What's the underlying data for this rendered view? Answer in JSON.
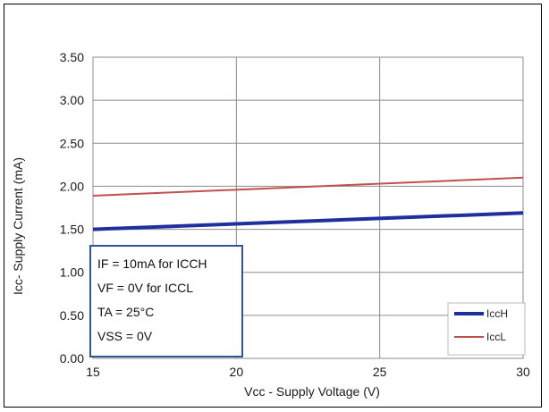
{
  "chart_data": {
    "type": "line",
    "xlabel": "Vcc - Supply Voltage  (V)",
    "ylabel": "Icc- Supply Current (mA)",
    "xlim": [
      15,
      30
    ],
    "ylim": [
      0,
      3.5
    ],
    "x_ticks": [
      "15",
      "20",
      "25",
      "30"
    ],
    "y_ticks": [
      "0.00",
      "0.50",
      "1.00",
      "1.50",
      "2.00",
      "2.50",
      "3.00",
      "3.50"
    ],
    "grid": true,
    "legend_position": "bottom-right",
    "series": [
      {
        "name": "IccH",
        "color": "#1f2f9e",
        "x": [
          15,
          30
        ],
        "y": [
          1.5,
          1.69
        ]
      },
      {
        "name": "IccL",
        "color": "#c0504d",
        "x": [
          15,
          30
        ],
        "y": [
          1.89,
          2.1
        ]
      }
    ],
    "annotation": {
      "lines": [
        "IF = 10mA for ICCH",
        "VF = 0V for ICCL",
        "TA = 25°C",
        "VSS = 0V"
      ]
    }
  }
}
